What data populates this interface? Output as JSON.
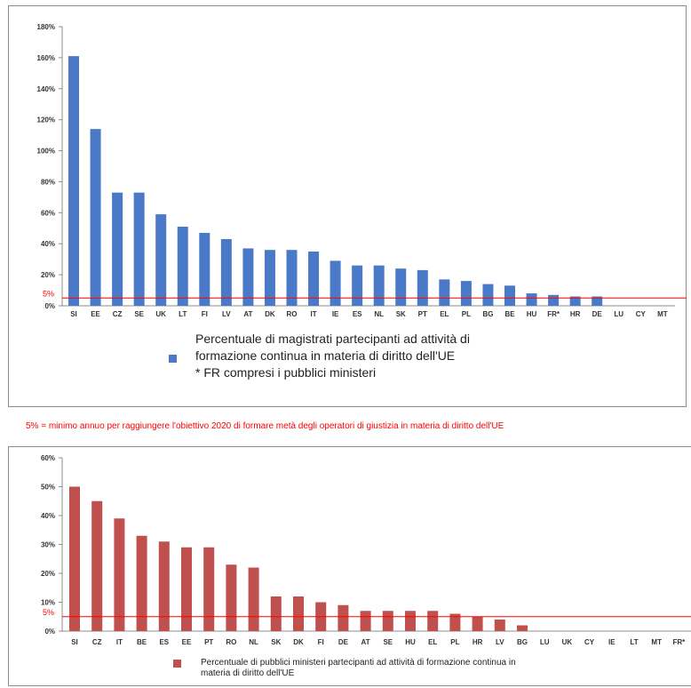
{
  "note": "5% = minimo annuo per raggiungere l'obiettivo 2020 di formare metà degli operatori di giustizia in materia di diritto dell'UE",
  "chart_data": [
    {
      "type": "bar",
      "categories": [
        "SI",
        "EE",
        "CZ",
        "SE",
        "UK",
        "LT",
        "FI",
        "LV",
        "AT",
        "DK",
        "RO",
        "IT",
        "IE",
        "ES",
        "NL",
        "SK",
        "PT",
        "EL",
        "PL",
        "BG",
        "BE",
        "HU",
        "FR*",
        "HR",
        "DE",
        "LU",
        "CY",
        "MT"
      ],
      "values": [
        161,
        114,
        73,
        73,
        59,
        51,
        47,
        43,
        37,
        36,
        36,
        35,
        29,
        26,
        26,
        24,
        23,
        17,
        16,
        14,
        13,
        8,
        7,
        6,
        6,
        0,
        0,
        0
      ],
      "ylim": [
        0,
        180
      ],
      "yticks": [
        "0%",
        "20%",
        "40%",
        "60%",
        "80%",
        "100%",
        "120%",
        "140%",
        "160%",
        "180%"
      ],
      "threshold": {
        "value": 5,
        "label": "5%",
        "color": "#ff0000"
      },
      "bar_color": "#4a7ac7",
      "grid": false,
      "legend": {
        "position": "bottom",
        "lines": [
          "Percentuale di magistrati partecipanti ad attività di",
          "formazione continua in materia di diritto dell'UE",
          "* FR compresi i pubblici ministeri"
        ]
      }
    },
    {
      "type": "bar",
      "categories": [
        "SI",
        "CZ",
        "IT",
        "BE",
        "ES",
        "EE",
        "PT",
        "RO",
        "NL",
        "SK",
        "DK",
        "FI",
        "DE",
        "AT",
        "SE",
        "HU",
        "EL",
        "PL",
        "HR",
        "LV",
        "BG",
        "LU",
        "UK",
        "CY",
        "IE",
        "LT",
        "MT",
        "FR*"
      ],
      "values": [
        50,
        45,
        39,
        33,
        31,
        29,
        29,
        23,
        22,
        12,
        12,
        10,
        9,
        7,
        7,
        7,
        7,
        6,
        5,
        4,
        2,
        0,
        0,
        0,
        0,
        0,
        0,
        0
      ],
      "ylim": [
        0,
        60
      ],
      "yticks": [
        "0%",
        "10%",
        "20%",
        "30%",
        "40%",
        "50%",
        "60%"
      ],
      "threshold": {
        "value": 5,
        "label": "5%",
        "color": "#ff0000"
      },
      "bar_color": "#c0504d",
      "grid": false,
      "legend": {
        "position": "bottom",
        "lines": [
          "Percentuale di pubblici ministeri partecipanti ad attività di formazione continua in",
          "materia di diritto dell'UE"
        ]
      }
    }
  ]
}
